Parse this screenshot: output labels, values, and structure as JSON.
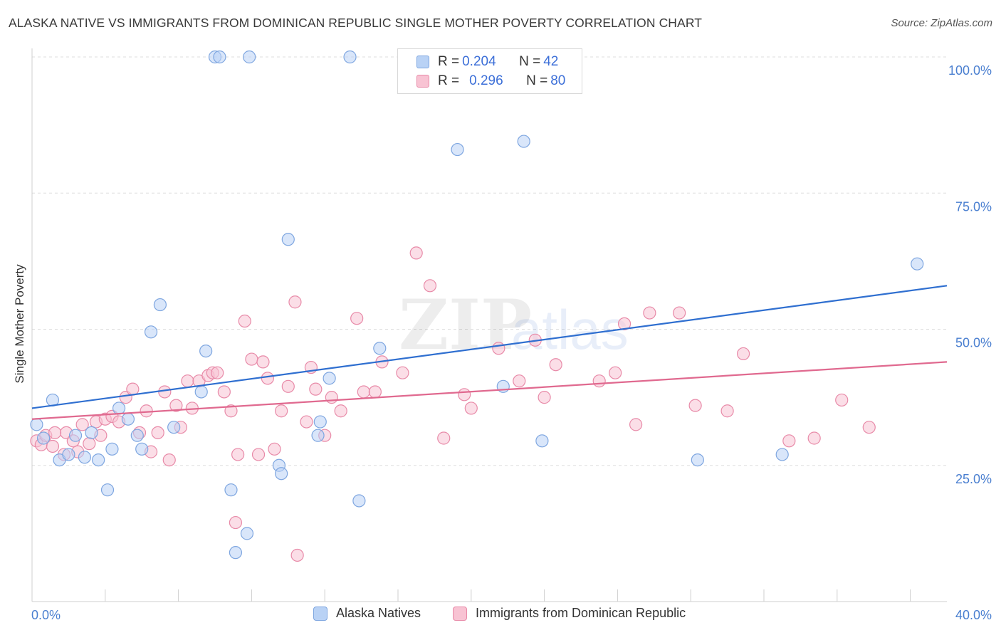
{
  "title": "ALASKA NATIVE VS IMMIGRANTS FROM DOMINICAN REPUBLIC SINGLE MOTHER POVERTY CORRELATION CHART",
  "source": "Source: ZipAtlas.com",
  "watermark": {
    "zip": "ZIP",
    "atlas": "atlas"
  },
  "legend": {
    "rows": [
      {
        "r_label": "R = ",
        "r_value": "0.204",
        "n_label": "N = ",
        "n_value": "42"
      },
      {
        "r_label": "R = ",
        "r_value": "0.296",
        "n_label": "N = ",
        "n_value": "80"
      }
    ]
  },
  "bottom_legend": [
    "Alaska Natives",
    "Immigrants from Dominican Republic"
  ],
  "colors": {
    "blue_fill": "#b9d2f5",
    "blue_stroke": "#7ea6e0",
    "blue_line": "#2f6fd0",
    "pink_fill": "#f8c3d3",
    "pink_stroke": "#e88aa8",
    "pink_line": "#e0698f",
    "tick": "#4a7fd0",
    "grid": "#dedede"
  },
  "chart_data": {
    "type": "scatter",
    "title": "ALASKA NATIVE VS IMMIGRANTS FROM DOMINICAN REPUBLIC SINGLE MOTHER POVERTY CORRELATION CHART",
    "xlabel": "",
    "ylabel": "Single Mother Poverty",
    "xlim": [
      0,
      40
    ],
    "ylim": [
      0,
      100
    ],
    "x_tick_labels": [
      "0.0%",
      "40.0%"
    ],
    "y_ticks": [
      25,
      50,
      75,
      100
    ],
    "y_tick_labels": [
      "25.0%",
      "50.0%",
      "75.0%",
      "100.0%"
    ],
    "grid": true,
    "legend_position": "top-center",
    "series": [
      {
        "name": "Alaska Natives",
        "color": "#7ea6e0",
        "r": 0.204,
        "n": 42,
        "trend": {
          "x": [
            0,
            40
          ],
          "y": [
            35.5,
            58.0
          ]
        },
        "points": [
          [
            0.2,
            32.5
          ],
          [
            0.5,
            30.0
          ],
          [
            0.9,
            37.0
          ],
          [
            1.2,
            26.0
          ],
          [
            1.6,
            27.0
          ],
          [
            1.9,
            30.5
          ],
          [
            2.3,
            26.5
          ],
          [
            2.6,
            31.0
          ],
          [
            2.9,
            26.0
          ],
          [
            3.3,
            20.5
          ],
          [
            3.5,
            28.0
          ],
          [
            3.8,
            35.5
          ],
          [
            4.2,
            33.5
          ],
          [
            4.6,
            30.5
          ],
          [
            4.8,
            28.0
          ],
          [
            5.2,
            49.5
          ],
          [
            5.6,
            54.5
          ],
          [
            6.2,
            32.0
          ],
          [
            7.4,
            38.5
          ],
          [
            7.6,
            46.0
          ],
          [
            8.0,
            100.0
          ],
          [
            8.2,
            100.0
          ],
          [
            8.7,
            20.5
          ],
          [
            8.9,
            9.0
          ],
          [
            9.4,
            12.5
          ],
          [
            9.5,
            100.0
          ],
          [
            10.8,
            25.0
          ],
          [
            10.9,
            23.5
          ],
          [
            11.2,
            66.5
          ],
          [
            12.5,
            30.5
          ],
          [
            12.6,
            33.0
          ],
          [
            13.0,
            41.0
          ],
          [
            13.9,
            100.0
          ],
          [
            14.3,
            18.5
          ],
          [
            15.2,
            46.5
          ],
          [
            18.6,
            83.0
          ],
          [
            20.6,
            39.5
          ],
          [
            21.5,
            84.5
          ],
          [
            22.3,
            29.5
          ],
          [
            29.1,
            26.0
          ],
          [
            32.8,
            27.0
          ],
          [
            38.7,
            62.0
          ]
        ]
      },
      {
        "name": "Immigrants from Dominican Republic",
        "color": "#e88aa8",
        "r": 0.296,
        "n": 80,
        "trend": {
          "x": [
            0,
            40
          ],
          "y": [
            33.5,
            44.0
          ]
        },
        "points": [
          [
            0.2,
            29.5
          ],
          [
            0.4,
            28.8
          ],
          [
            0.6,
            30.5
          ],
          [
            0.9,
            28.5
          ],
          [
            1.0,
            31.0
          ],
          [
            1.4,
            27.0
          ],
          [
            1.5,
            31.0
          ],
          [
            1.8,
            29.5
          ],
          [
            2.0,
            27.5
          ],
          [
            2.2,
            32.5
          ],
          [
            2.5,
            29.0
          ],
          [
            2.8,
            33.0
          ],
          [
            3.0,
            30.5
          ],
          [
            3.2,
            33.5
          ],
          [
            3.5,
            34.0
          ],
          [
            3.8,
            33.0
          ],
          [
            4.1,
            37.5
          ],
          [
            4.4,
            39.0
          ],
          [
            4.7,
            31.0
          ],
          [
            5.0,
            35.0
          ],
          [
            5.2,
            27.5
          ],
          [
            5.5,
            31.0
          ],
          [
            5.8,
            38.5
          ],
          [
            6.0,
            26.0
          ],
          [
            6.3,
            36.0
          ],
          [
            6.5,
            32.0
          ],
          [
            6.8,
            40.5
          ],
          [
            7.0,
            35.5
          ],
          [
            7.3,
            40.5
          ],
          [
            7.7,
            41.5
          ],
          [
            7.9,
            42.0
          ],
          [
            8.1,
            42.0
          ],
          [
            8.4,
            38.5
          ],
          [
            8.7,
            35.0
          ],
          [
            8.9,
            14.5
          ],
          [
            9.0,
            27.0
          ],
          [
            9.3,
            51.5
          ],
          [
            9.6,
            44.5
          ],
          [
            9.9,
            27.0
          ],
          [
            10.1,
            44.0
          ],
          [
            10.3,
            41.0
          ],
          [
            10.6,
            28.0
          ],
          [
            10.9,
            35.0
          ],
          [
            11.2,
            39.5
          ],
          [
            11.5,
            55.0
          ],
          [
            11.6,
            8.5
          ],
          [
            12.0,
            33.0
          ],
          [
            12.2,
            43.0
          ],
          [
            12.4,
            39.0
          ],
          [
            12.8,
            30.5
          ],
          [
            13.1,
            37.5
          ],
          [
            13.5,
            35.0
          ],
          [
            14.2,
            52.0
          ],
          [
            14.5,
            38.5
          ],
          [
            15.0,
            38.5
          ],
          [
            15.3,
            44.0
          ],
          [
            16.2,
            42.0
          ],
          [
            16.8,
            64.0
          ],
          [
            17.4,
            58.0
          ],
          [
            18.0,
            30.0
          ],
          [
            18.9,
            38.0
          ],
          [
            19.2,
            35.5
          ],
          [
            20.4,
            46.5
          ],
          [
            21.3,
            40.5
          ],
          [
            22.0,
            48.0
          ],
          [
            22.4,
            37.5
          ],
          [
            22.9,
            43.5
          ],
          [
            24.8,
            40.5
          ],
          [
            25.5,
            42.0
          ],
          [
            25.9,
            51.0
          ],
          [
            26.4,
            32.5
          ],
          [
            27.0,
            53.0
          ],
          [
            28.3,
            53.0
          ],
          [
            29.0,
            36.0
          ],
          [
            30.4,
            35.0
          ],
          [
            31.1,
            45.5
          ],
          [
            33.1,
            29.5
          ],
          [
            34.2,
            30.0
          ],
          [
            35.4,
            37.0
          ],
          [
            36.6,
            32.0
          ]
        ]
      }
    ]
  }
}
